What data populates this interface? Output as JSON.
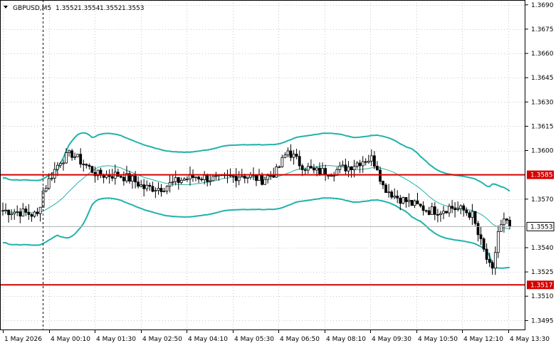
{
  "chart_data": {
    "type": "candlestick",
    "header": {
      "symbol": "GBPUSD,M5",
      "open": "1.3552",
      "high": "1.3554",
      "low": "1.3552",
      "close": "1.3553"
    },
    "y_ticks": [
      "1.3690",
      "1.3675",
      "1.3660",
      "1.3645",
      "1.3630",
      "1.3615",
      "1.3600",
      "1.3570",
      "1.3540",
      "1.3525",
      "1.3510",
      "1.3495"
    ],
    "x_ticks": [
      "1 May 2026",
      "4 May 00:10",
      "4 May 01:30",
      "4 May 02:50",
      "4 May 04:10",
      "4 May 05:30",
      "4 May 06:50",
      "4 May 08:10",
      "4 May 09:30",
      "4 May 10:50",
      "4 May 12:10",
      "4 May 13:30"
    ],
    "ylim": [
      1.3489,
      1.3693
    ],
    "price_lines": [
      {
        "value": 1.3585,
        "label": "1.3585",
        "color": "#d40000"
      },
      {
        "value": 1.3517,
        "label": "1.3517",
        "color": "#d40000"
      }
    ],
    "current_price": {
      "value": 1.3553,
      "label": "1.3553"
    },
    "colors": {
      "band": "#20b2aa",
      "grid": "#c8c8c8",
      "candle": "#000000",
      "level": "#d40000"
    },
    "candles": [],
    "bollinger": {
      "upper": [],
      "middle": [],
      "lower": []
    }
  }
}
